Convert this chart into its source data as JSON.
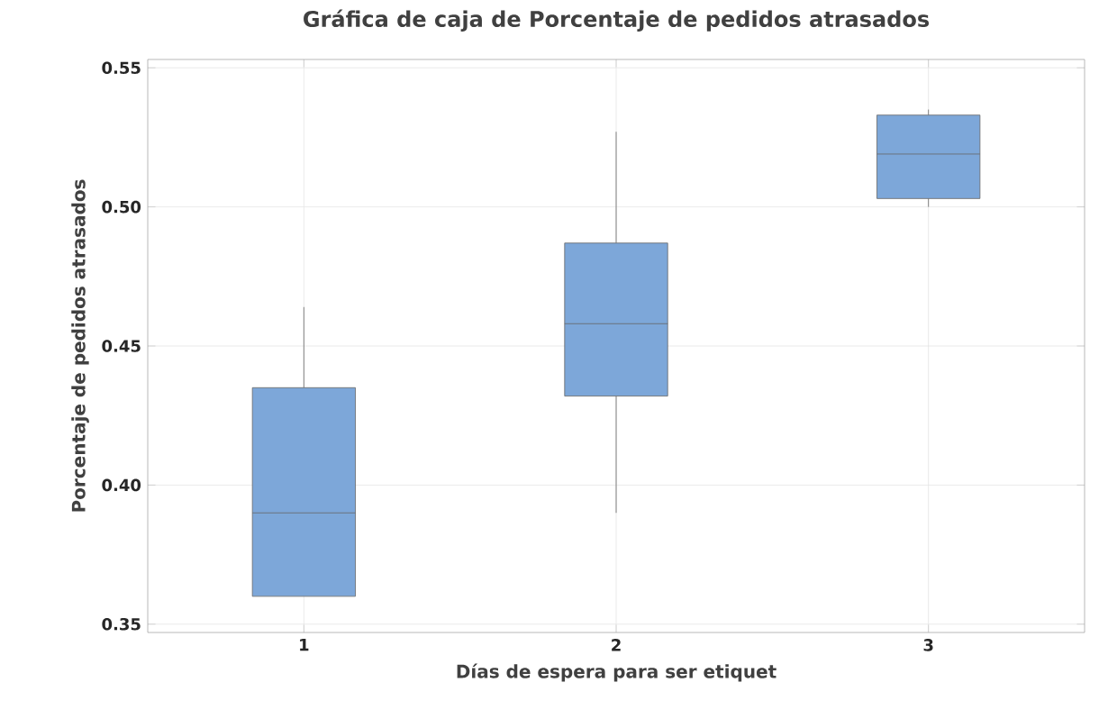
{
  "chart_data": {
    "type": "box",
    "title": "Gráfica de caja de Porcentaje de pedidos atrasados",
    "xlabel": "Días de espera para ser etiquet",
    "ylabel": "Porcentaje de pedidos atrasados",
    "categories": [
      "1",
      "2",
      "3"
    ],
    "boxes": [
      {
        "low": 0.36,
        "q1": 0.36,
        "median": 0.39,
        "q3": 0.435,
        "high": 0.464
      },
      {
        "low": 0.39,
        "q1": 0.432,
        "median": 0.458,
        "q3": 0.487,
        "high": 0.527
      },
      {
        "low": 0.5,
        "q1": 0.503,
        "median": 0.519,
        "q3": 0.533,
        "high": 0.535
      }
    ],
    "color": "#7da7d9",
    "ylim": [
      0.347,
      0.553
    ],
    "yticks": [
      {
        "value": 0.35,
        "label": "0.35"
      },
      {
        "value": 0.4,
        "label": "0.40"
      },
      {
        "value": 0.45,
        "label": "0.45"
      },
      {
        "value": 0.5,
        "label": "0.50"
      },
      {
        "value": 0.55,
        "label": "0.55"
      }
    ],
    "grid": true
  }
}
